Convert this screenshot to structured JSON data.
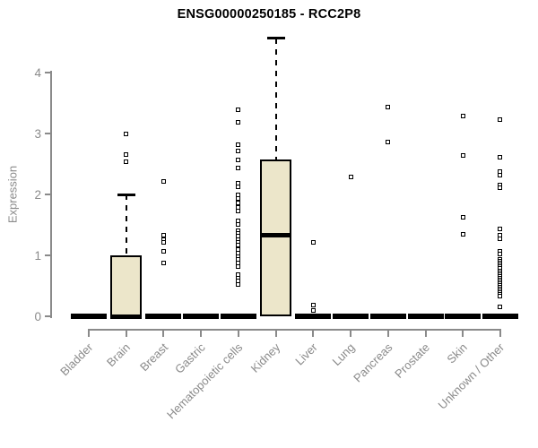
{
  "chart_data": {
    "type": "boxplot",
    "title": "ENSG00000250185 - RCC2P8",
    "ylabel": "Expression",
    "xlabel": "",
    "ylim": [
      0,
      4.6
    ],
    "yticks": [
      0,
      1,
      2,
      3,
      4
    ],
    "grid": false,
    "legend": false,
    "categories": [
      "Bladder",
      "Brain",
      "Breast",
      "Gastric",
      "Hematopoietic cells",
      "Kidney",
      "Liver",
      "Lung",
      "Pancreas",
      "Prostate",
      "Skin",
      "Unknown / Other"
    ],
    "boxes": [
      {
        "category": "Bladder",
        "q1": 0,
        "median": 0,
        "q3": 0,
        "whisker_low": 0,
        "whisker_high": 0,
        "outliers": []
      },
      {
        "category": "Brain",
        "q1": 0,
        "median": 0,
        "q3": 1.0,
        "whisker_low": 0,
        "whisker_high": 2.0,
        "outliers": [
          2.99,
          2.65,
          2.54
        ]
      },
      {
        "category": "Breast",
        "q1": 0,
        "median": 0,
        "q3": 0,
        "whisker_low": 0,
        "whisker_high": 0,
        "outliers": [
          2.21,
          1.33,
          1.26,
          1.21,
          1.07,
          0.88
        ]
      },
      {
        "category": "Gastric",
        "q1": 0,
        "median": 0,
        "q3": 0,
        "whisker_low": 0,
        "whisker_high": 0,
        "outliers": []
      },
      {
        "category": "Hematopoietic cells",
        "q1": 0,
        "median": 0,
        "q3": 0,
        "whisker_low": 0,
        "whisker_high": 0,
        "outliers": [
          3.39,
          3.19,
          2.81,
          2.72,
          2.57,
          2.44,
          2.19,
          2.12,
          2.0,
          1.93,
          1.86,
          1.79,
          1.73,
          1.57,
          1.51,
          1.41,
          1.36,
          1.31,
          1.26,
          1.21,
          1.17,
          1.1,
          1.03,
          0.98,
          0.93,
          0.88,
          0.81,
          0.68,
          0.63,
          0.58,
          0.52
        ]
      },
      {
        "category": "Kidney",
        "q1": 0,
        "median": 1.33,
        "q3": 2.57,
        "whisker_low": 0,
        "whisker_high": 4.56,
        "outliers": []
      },
      {
        "category": "Liver",
        "q1": 0,
        "median": 0,
        "q3": 0,
        "whisker_low": 0,
        "whisker_high": 0,
        "outliers": [
          1.22,
          0.18,
          0.1
        ]
      },
      {
        "category": "Lung",
        "q1": 0,
        "median": 0,
        "q3": 0,
        "whisker_low": 0,
        "whisker_high": 0,
        "outliers": [
          2.29
        ]
      },
      {
        "category": "Pancreas",
        "q1": 0,
        "median": 0,
        "q3": 0,
        "whisker_low": 0,
        "whisker_high": 0,
        "outliers": [
          3.44,
          2.86
        ]
      },
      {
        "category": "Prostate",
        "q1": 0,
        "median": 0,
        "q3": 0,
        "whisker_low": 0,
        "whisker_high": 0,
        "outliers": []
      },
      {
        "category": "Skin",
        "q1": 0,
        "median": 0,
        "q3": 0,
        "whisker_low": 0,
        "whisker_high": 0,
        "outliers": [
          3.29,
          2.64,
          1.63,
          1.34
        ]
      },
      {
        "category": "Unknown / Other",
        "q1": 0,
        "median": 0,
        "q3": 0,
        "whisker_low": 0,
        "whisker_high": 0,
        "outliers": [
          3.23,
          2.61,
          2.37,
          2.32,
          2.16,
          2.11,
          1.43,
          1.33,
          1.27,
          1.07,
          1.02,
          0.93,
          0.9,
          0.87,
          0.84,
          0.81,
          0.78,
          0.75,
          0.72,
          0.69,
          0.66,
          0.63,
          0.6,
          0.57,
          0.54,
          0.51,
          0.48,
          0.45,
          0.42,
          0.39,
          0.36,
          0.33,
          0.16
        ]
      }
    ],
    "colors": {
      "box_fill": "#ece6ca",
      "box_border": "#000000",
      "median": "#000000",
      "whisker": "#000000",
      "outlier_border": "#000000",
      "axis": "#8a8a8a",
      "tick_text": "#8a8a8a",
      "title_text": "#000000",
      "background": "#ffffff"
    }
  }
}
